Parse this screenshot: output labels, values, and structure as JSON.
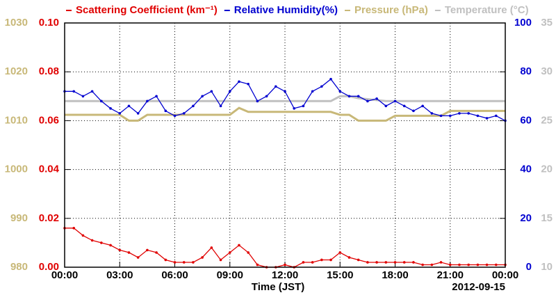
{
  "chart_data": {
    "type": "line",
    "xlabel": "Time (JST)",
    "date_label": "2012-09-15",
    "x": [
      0,
      0.5,
      1,
      1.5,
      2,
      2.5,
      3,
      3.5,
      4,
      4.5,
      5,
      5.5,
      6,
      6.5,
      7,
      7.5,
      8,
      8.5,
      9,
      9.5,
      10,
      10.5,
      11,
      11.5,
      12,
      12.5,
      13,
      13.5,
      14,
      14.5,
      15,
      15.5,
      16,
      16.5,
      17,
      17.5,
      18,
      18.5,
      19,
      19.5,
      20,
      20.5,
      21,
      21.5,
      22,
      22.5,
      23,
      23.5,
      24
    ],
    "xlim": [
      0,
      24
    ],
    "xticks": [
      {
        "value": 0,
        "label": "00:00"
      },
      {
        "value": 3,
        "label": "03:00"
      },
      {
        "value": 6,
        "label": "06:00"
      },
      {
        "value": 9,
        "label": "09:00"
      },
      {
        "value": 12,
        "label": "12:00"
      },
      {
        "value": 15,
        "label": "15:00"
      },
      {
        "value": 18,
        "label": "18:00"
      },
      {
        "value": 21,
        "label": "21:00"
      },
      {
        "value": 24,
        "label": "00:00"
      }
    ],
    "ylim": [
      0,
      0.1
    ],
    "yticks": [
      {
        "value": 0,
        "label": "0.00"
      },
      {
        "value": 0.02,
        "label": "0.02"
      },
      {
        "value": 0.04,
        "label": "0.04"
      },
      {
        "value": 0.06,
        "label": "0.06"
      },
      {
        "value": 0.08,
        "label": "0.08"
      },
      {
        "value": 0.1,
        "label": "0.10"
      }
    ],
    "y2lim": [
      0,
      100
    ],
    "y2ticks": [
      0,
      20,
      40,
      60,
      80,
      100
    ],
    "y3lim": [
      980,
      1030
    ],
    "y3ticks": [
      980,
      990,
      1000,
      1010,
      1020,
      1030
    ],
    "y4lim": [
      10,
      35
    ],
    "y4ticks": [
      10,
      15,
      20,
      25,
      30,
      35
    ],
    "grid": true,
    "series": [
      {
        "name": "Scattering Coefficient (km⁻¹)",
        "color": "#e00000",
        "axis": "y",
        "markers": true,
        "values": [
          0.016,
          0.016,
          0.013,
          0.011,
          0.01,
          0.009,
          0.007,
          0.006,
          0.004,
          0.007,
          0.006,
          0.003,
          0.002,
          0.002,
          0.002,
          0.004,
          0.008,
          0.003,
          0.006,
          0.009,
          0.006,
          0.001,
          0,
          0,
          0.001,
          0,
          0.002,
          0.002,
          0.003,
          0.003,
          0.006,
          0.004,
          0.003,
          0.002,
          0.002,
          0.002,
          0.002,
          0.002,
          0.002,
          0.001,
          0.001,
          0.002,
          0.001,
          0.001,
          0.001,
          0.001,
          0.001,
          0.001,
          0.001
        ]
      },
      {
        "name": "Relative Humidity(%)",
        "color": "#0000d0",
        "axis": "y2",
        "markers": true,
        "values": [
          72,
          72,
          70,
          72,
          68,
          65,
          63,
          66,
          63,
          68,
          70,
          64,
          62,
          63,
          66,
          70,
          72,
          66,
          72,
          76,
          75,
          68,
          70,
          74,
          72,
          65,
          66,
          72,
          74,
          77,
          72,
          70,
          70,
          68,
          69,
          66,
          68,
          66,
          64,
          66,
          63,
          62,
          62,
          63,
          63,
          62,
          61,
          62,
          60
        ]
      },
      {
        "name": "Pressure (hPa)",
        "color": "#c8b878",
        "axis": "y3",
        "markers": false,
        "values": [
          1011.2,
          1011.2,
          1011.2,
          1011.2,
          1011.2,
          1011.2,
          1011.2,
          1010,
          1010,
          1011.2,
          1011.2,
          1011.2,
          1011.2,
          1011.2,
          1011.2,
          1011.2,
          1011.2,
          1011.2,
          1011.2,
          1012.6,
          1011.8,
          1011.8,
          1011.8,
          1011.8,
          1011.8,
          1011.8,
          1011.8,
          1011.8,
          1011.8,
          1011.8,
          1011.2,
          1011.2,
          1010,
          1010,
          1010,
          1010,
          1011,
          1011,
          1011,
          1011,
          1011,
          1011,
          1012,
          1012,
          1012,
          1012,
          1012,
          1012,
          1012
        ]
      },
      {
        "name": "Temperature (°C)",
        "color": "#c0c0c0",
        "axis": "y4",
        "markers": false,
        "values": [
          27,
          27,
          27,
          27,
          27,
          27,
          27,
          27,
          27,
          27,
          27,
          27,
          27,
          27,
          27,
          27,
          27,
          27,
          27,
          27,
          27,
          27,
          27,
          27,
          27,
          27,
          27,
          27,
          27,
          27,
          27.5,
          27.5,
          27.3,
          27.2,
          27.1,
          27,
          27,
          27,
          27,
          27,
          27,
          27,
          27,
          27,
          27,
          27,
          27,
          27,
          27
        ]
      }
    ]
  }
}
